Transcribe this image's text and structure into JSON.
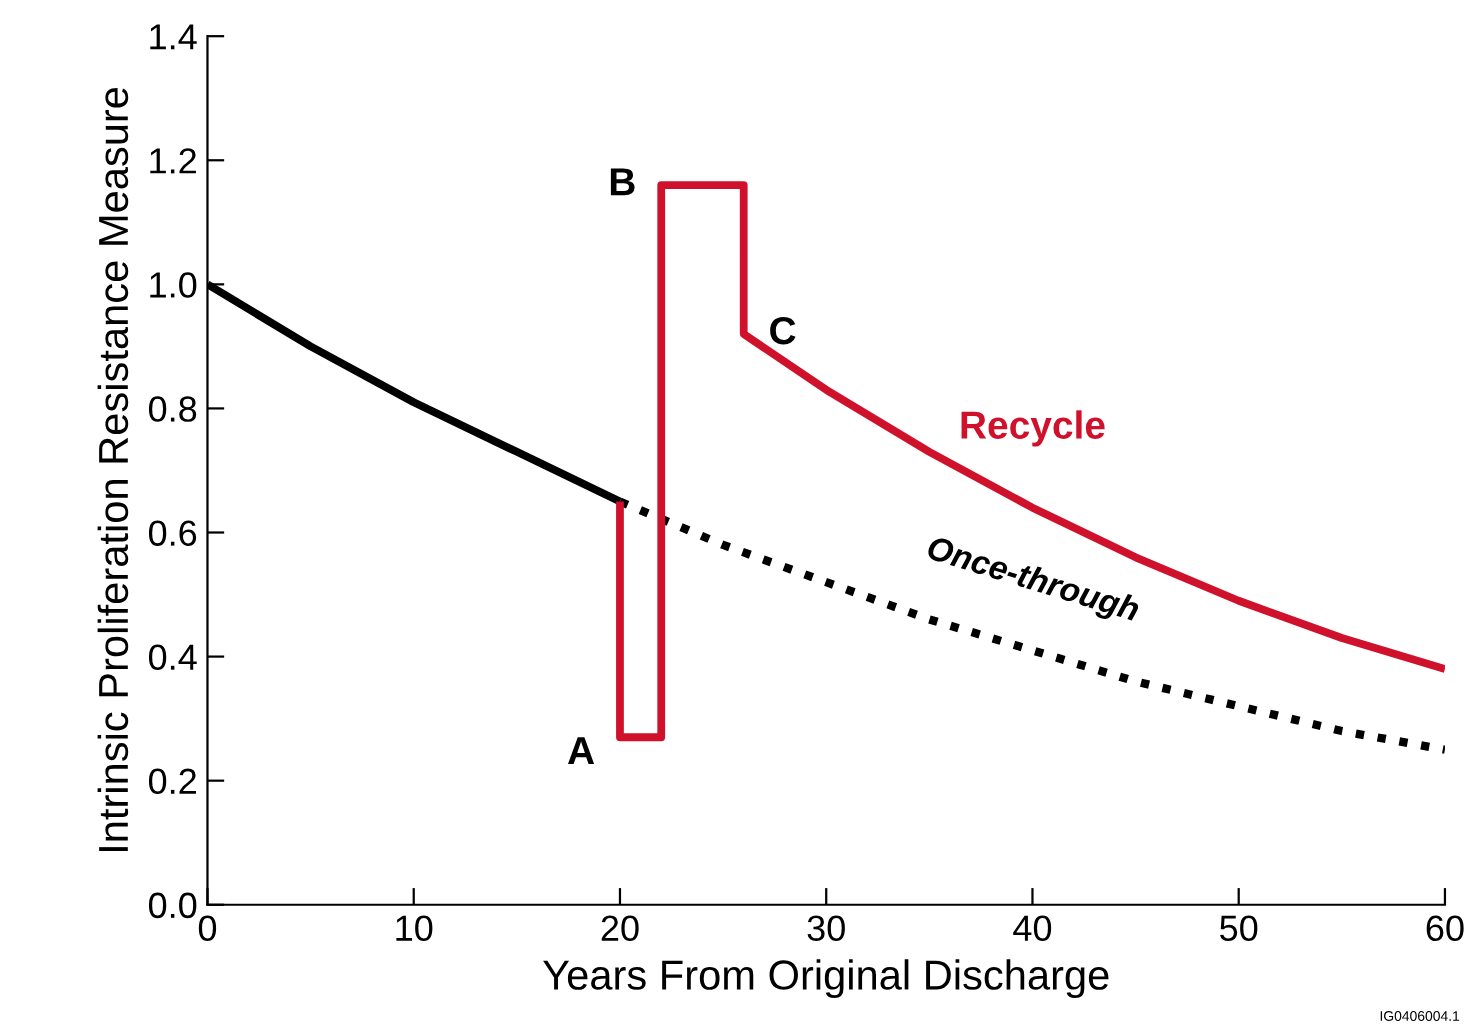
{
  "chart_data": {
    "type": "line",
    "xlabel": "Years From Original Discharge",
    "ylabel": "Intrinsic Proliferation Resistance Measure",
    "xlim": [
      0,
      60
    ],
    "xticks": [
      0,
      10,
      20,
      30,
      40,
      50,
      60
    ],
    "ylim": [
      0,
      1.4
    ],
    "yticks": [
      {
        "value": 0,
        "label": "0.0"
      },
      0.2,
      0.4,
      0.6,
      0.8,
      {
        "value": 1,
        "label": "1.0"
      },
      1.2,
      1.4
    ],
    "grid": false,
    "legend": false,
    "marker": "none",
    "series": [
      {
        "color": "#000000",
        "line_style": "solid",
        "x": [
          0,
          5,
          10,
          15,
          20
        ],
        "values": [
          1.0,
          0.9,
          0.81,
          0.73,
          0.65
        ]
      },
      {
        "name": "Once-through",
        "color": "#000000",
        "line_style": "dotted",
        "x": [
          20,
          25,
          30,
          35,
          40,
          45,
          50,
          55,
          60
        ],
        "values": [
          0.65,
          0.58,
          0.52,
          0.46,
          0.41,
          0.36,
          0.32,
          0.28,
          0.25
        ]
      },
      {
        "name": "Recycle",
        "color": "#d0112b",
        "line_style": "solid",
        "x": [
          20,
          20,
          22,
          22,
          26,
          26,
          30,
          35,
          40,
          45,
          50,
          55,
          60
        ],
        "values": [
          0.65,
          0.27,
          0.27,
          1.16,
          1.16,
          0.92,
          0.83,
          0.73,
          0.64,
          0.56,
          0.49,
          0.43,
          0.38
        ]
      }
    ],
    "annotations": [
      {
        "text": "A",
        "x": 20,
        "y": 0.27
      },
      {
        "text": "B",
        "x": 22,
        "y": 1.16
      },
      {
        "text": "C",
        "x": 26,
        "y": 0.92
      },
      "IG0406004.1"
    ]
  }
}
